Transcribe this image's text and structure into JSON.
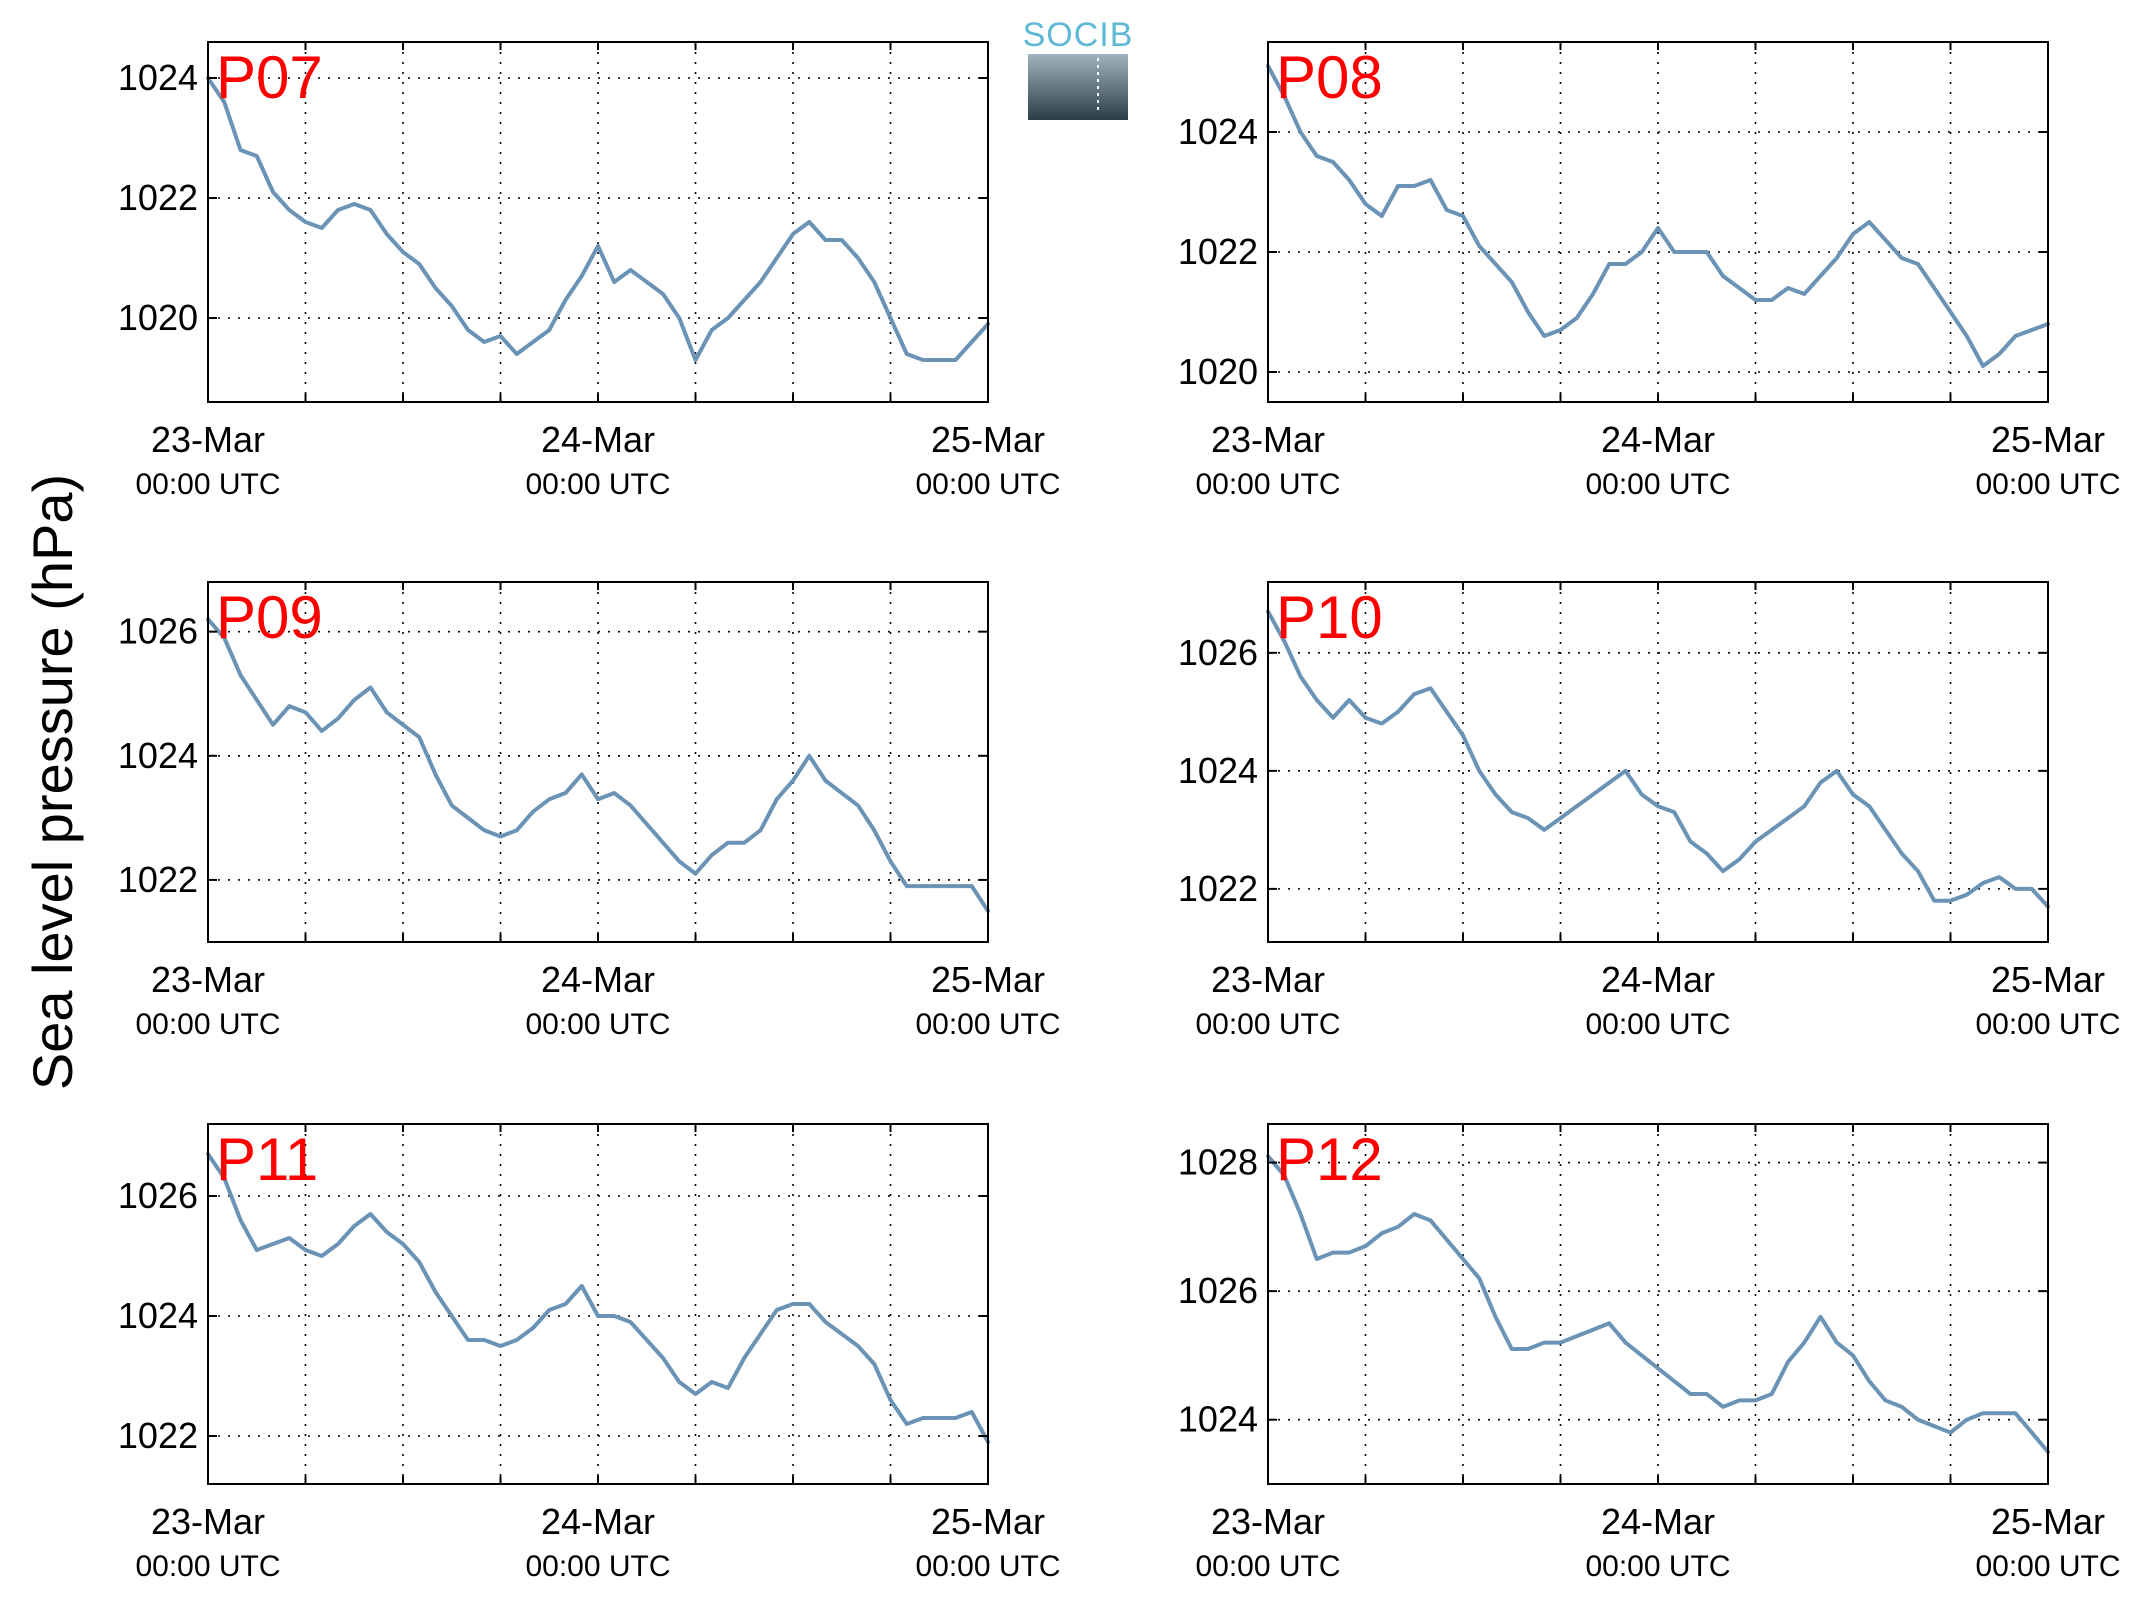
{
  "figure": {
    "ylabel": "Sea level pressure (hPa)",
    "logo_text": "SOCIB"
  },
  "style": {
    "line_color": "#6a93b6",
    "label_color": "#ff0000",
    "grid_color": "#000000",
    "logo_top_color": "#9fb3bf",
    "logo_bottom_color": "#2b3e48",
    "logo_text_color": "#5fb9d6"
  },
  "chart_data": [
    {
      "type": "line",
      "label": "P07",
      "x_range": [
        0,
        48
      ],
      "x_unit": "hours since 23-Mar 00:00 UTC",
      "ylim": [
        1018.6,
        1024.6
      ],
      "yticks": [
        1020,
        1022,
        1024
      ],
      "xtick_labels": [
        {
          "date": "23-Mar",
          "time": "00:00 UTC"
        },
        {
          "date": "24-Mar",
          "time": "00:00 UTC"
        },
        {
          "date": "25-Mar",
          "time": "00:00 UTC"
        }
      ],
      "grid": true,
      "series": [
        {
          "x": [
            0,
            1,
            2,
            3,
            4,
            5,
            6,
            7,
            8,
            9,
            10,
            11,
            12,
            13,
            14,
            15,
            16,
            17,
            18,
            19,
            20,
            21,
            22,
            23,
            24,
            25,
            26,
            27,
            28,
            29,
            30,
            31,
            32,
            33,
            34,
            35,
            36,
            37,
            38,
            39,
            40,
            41,
            42,
            43,
            44,
            45,
            46,
            47,
            48
          ],
          "y": [
            1024.0,
            1023.6,
            1022.8,
            1022.7,
            1022.1,
            1021.8,
            1021.6,
            1021.5,
            1021.8,
            1021.9,
            1021.8,
            1021.4,
            1021.1,
            1020.9,
            1020.5,
            1020.2,
            1019.8,
            1019.6,
            1019.7,
            1019.4,
            1019.6,
            1019.8,
            1020.3,
            1020.7,
            1021.2,
            1020.6,
            1020.8,
            1020.6,
            1020.4,
            1020.0,
            1019.3,
            1019.8,
            1020.0,
            1020.3,
            1020.6,
            1021.0,
            1021.4,
            1021.6,
            1021.3,
            1021.3,
            1021.0,
            1020.6,
            1020.0,
            1019.4,
            1019.3,
            1019.3,
            1019.3,
            1019.6,
            1019.9
          ]
        }
      ]
    },
    {
      "type": "line",
      "label": "P08",
      "x_range": [
        0,
        48
      ],
      "x_unit": "hours since 23-Mar 00:00 UTC",
      "ylim": [
        1019.5,
        1025.5
      ],
      "yticks": [
        1020,
        1022,
        1024
      ],
      "xtick_labels": [
        {
          "date": "23-Mar",
          "time": "00:00 UTC"
        },
        {
          "date": "24-Mar",
          "time": "00:00 UTC"
        },
        {
          "date": "25-Mar",
          "time": "00:00 UTC"
        }
      ],
      "grid": true,
      "series": [
        {
          "x": [
            0,
            1,
            2,
            3,
            4,
            5,
            6,
            7,
            8,
            9,
            10,
            11,
            12,
            13,
            14,
            15,
            16,
            17,
            18,
            19,
            20,
            21,
            22,
            23,
            24,
            25,
            26,
            27,
            28,
            29,
            30,
            31,
            32,
            33,
            34,
            35,
            36,
            37,
            38,
            39,
            40,
            41,
            42,
            43,
            44,
            45,
            46,
            47,
            48
          ],
          "y": [
            1025.1,
            1024.6,
            1024.0,
            1023.6,
            1023.5,
            1023.2,
            1022.8,
            1022.6,
            1023.1,
            1023.1,
            1023.2,
            1022.7,
            1022.6,
            1022.1,
            1021.8,
            1021.5,
            1021.0,
            1020.6,
            1020.7,
            1020.9,
            1021.3,
            1021.8,
            1021.8,
            1022.0,
            1022.4,
            1022.0,
            1022.0,
            1022.0,
            1021.6,
            1021.4,
            1021.2,
            1021.2,
            1021.4,
            1021.3,
            1021.6,
            1021.9,
            1022.3,
            1022.5,
            1022.2,
            1021.9,
            1021.8,
            1021.4,
            1021.0,
            1020.6,
            1020.1,
            1020.3,
            1020.6,
            1020.7,
            1020.8
          ]
        }
      ]
    },
    {
      "type": "line",
      "label": "P09",
      "x_range": [
        0,
        48
      ],
      "x_unit": "hours since 23-Mar 00:00 UTC",
      "ylim": [
        1021.0,
        1026.8
      ],
      "yticks": [
        1022,
        1024,
        1026
      ],
      "xtick_labels": [
        {
          "date": "23-Mar",
          "time": "00:00 UTC"
        },
        {
          "date": "24-Mar",
          "time": "00:00 UTC"
        },
        {
          "date": "25-Mar",
          "time": "00:00 UTC"
        }
      ],
      "grid": true,
      "series": [
        {
          "x": [
            0,
            1,
            2,
            3,
            4,
            5,
            6,
            7,
            8,
            9,
            10,
            11,
            12,
            13,
            14,
            15,
            16,
            17,
            18,
            19,
            20,
            21,
            22,
            23,
            24,
            25,
            26,
            27,
            28,
            29,
            30,
            31,
            32,
            33,
            34,
            35,
            36,
            37,
            38,
            39,
            40,
            41,
            42,
            43,
            44,
            45,
            46,
            47,
            48
          ],
          "y": [
            1026.2,
            1025.9,
            1025.3,
            1024.9,
            1024.5,
            1024.8,
            1024.7,
            1024.4,
            1024.6,
            1024.9,
            1025.1,
            1024.7,
            1024.5,
            1024.3,
            1023.7,
            1023.2,
            1023.0,
            1022.8,
            1022.7,
            1022.8,
            1023.1,
            1023.3,
            1023.4,
            1023.7,
            1023.3,
            1023.4,
            1023.2,
            1022.9,
            1022.6,
            1022.3,
            1022.1,
            1022.4,
            1022.6,
            1022.6,
            1022.8,
            1023.3,
            1023.6,
            1024.0,
            1023.6,
            1023.4,
            1023.2,
            1022.8,
            1022.3,
            1021.9,
            1021.9,
            1021.9,
            1021.9,
            1021.9,
            1021.5
          ]
        }
      ]
    },
    {
      "type": "line",
      "label": "P10",
      "x_range": [
        0,
        48
      ],
      "x_unit": "hours since 23-Mar 00:00 UTC",
      "ylim": [
        1021.1,
        1027.2
      ],
      "yticks": [
        1022,
        1024,
        1026
      ],
      "xtick_labels": [
        {
          "date": "23-Mar",
          "time": "00:00 UTC"
        },
        {
          "date": "24-Mar",
          "time": "00:00 UTC"
        },
        {
          "date": "25-Mar",
          "time": "00:00 UTC"
        }
      ],
      "grid": true,
      "series": [
        {
          "x": [
            0,
            1,
            2,
            3,
            4,
            5,
            6,
            7,
            8,
            9,
            10,
            11,
            12,
            13,
            14,
            15,
            16,
            17,
            18,
            19,
            20,
            21,
            22,
            23,
            24,
            25,
            26,
            27,
            28,
            29,
            30,
            31,
            32,
            33,
            34,
            35,
            36,
            37,
            38,
            39,
            40,
            41,
            42,
            43,
            44,
            45,
            46,
            47,
            48
          ],
          "y": [
            1026.7,
            1026.2,
            1025.6,
            1025.2,
            1024.9,
            1025.2,
            1024.9,
            1024.8,
            1025.0,
            1025.3,
            1025.4,
            1025.0,
            1024.6,
            1024.0,
            1023.6,
            1023.3,
            1023.2,
            1023.0,
            1023.2,
            1023.4,
            1023.6,
            1023.8,
            1024.0,
            1023.6,
            1023.4,
            1023.3,
            1022.8,
            1022.6,
            1022.3,
            1022.5,
            1022.8,
            1023.0,
            1023.2,
            1023.4,
            1023.8,
            1024.0,
            1023.6,
            1023.4,
            1023.0,
            1022.6,
            1022.3,
            1021.8,
            1021.8,
            1021.9,
            1022.1,
            1022.2,
            1022.0,
            1022.0,
            1021.7
          ]
        }
      ]
    },
    {
      "type": "line",
      "label": "P11",
      "x_range": [
        0,
        48
      ],
      "x_unit": "hours since 23-Mar 00:00 UTC",
      "ylim": [
        1021.2,
        1027.2
      ],
      "yticks": [
        1022,
        1024,
        1026
      ],
      "xtick_labels": [
        {
          "date": "23-Mar",
          "time": "00:00 UTC"
        },
        {
          "date": "24-Mar",
          "time": "00:00 UTC"
        },
        {
          "date": "25-Mar",
          "time": "00:00 UTC"
        }
      ],
      "grid": true,
      "series": [
        {
          "x": [
            0,
            1,
            2,
            3,
            4,
            5,
            6,
            7,
            8,
            9,
            10,
            11,
            12,
            13,
            14,
            15,
            16,
            17,
            18,
            19,
            20,
            21,
            22,
            23,
            24,
            25,
            26,
            27,
            28,
            29,
            30,
            31,
            32,
            33,
            34,
            35,
            36,
            37,
            38,
            39,
            40,
            41,
            42,
            43,
            44,
            45,
            46,
            47,
            48
          ],
          "y": [
            1026.7,
            1026.3,
            1025.6,
            1025.1,
            1025.2,
            1025.3,
            1025.1,
            1025.0,
            1025.2,
            1025.5,
            1025.7,
            1025.4,
            1025.2,
            1024.9,
            1024.4,
            1024.0,
            1023.6,
            1023.6,
            1023.5,
            1023.6,
            1023.8,
            1024.1,
            1024.2,
            1024.5,
            1024.0,
            1024.0,
            1023.9,
            1023.6,
            1023.3,
            1022.9,
            1022.7,
            1022.9,
            1022.8,
            1023.3,
            1023.7,
            1024.1,
            1024.2,
            1024.2,
            1023.9,
            1023.7,
            1023.5,
            1023.2,
            1022.6,
            1022.2,
            1022.3,
            1022.3,
            1022.3,
            1022.4,
            1021.9
          ]
        }
      ]
    },
    {
      "type": "line",
      "label": "P12",
      "x_range": [
        0,
        48
      ],
      "x_unit": "hours since 23-Mar 00:00 UTC",
      "ylim": [
        1023.0,
        1028.6
      ],
      "yticks": [
        1024,
        1026,
        1028
      ],
      "xtick_labels": [
        {
          "date": "23-Mar",
          "time": "00:00 UTC"
        },
        {
          "date": "24-Mar",
          "time": "00:00 UTC"
        },
        {
          "date": "25-Mar",
          "time": "00:00 UTC"
        }
      ],
      "grid": true,
      "series": [
        {
          "x": [
            0,
            1,
            2,
            3,
            4,
            5,
            6,
            7,
            8,
            9,
            10,
            11,
            12,
            13,
            14,
            15,
            16,
            17,
            18,
            19,
            20,
            21,
            22,
            23,
            24,
            25,
            26,
            27,
            28,
            29,
            30,
            31,
            32,
            33,
            34,
            35,
            36,
            37,
            38,
            39,
            40,
            41,
            42,
            43,
            44,
            45,
            46,
            47,
            48
          ],
          "y": [
            1028.1,
            1027.8,
            1027.2,
            1026.5,
            1026.6,
            1026.6,
            1026.7,
            1026.9,
            1027.0,
            1027.2,
            1027.1,
            1026.8,
            1026.5,
            1026.2,
            1025.6,
            1025.1,
            1025.1,
            1025.2,
            1025.2,
            1025.3,
            1025.4,
            1025.5,
            1025.2,
            1025.0,
            1024.8,
            1024.6,
            1024.4,
            1024.4,
            1024.2,
            1024.3,
            1024.3,
            1024.4,
            1024.9,
            1025.2,
            1025.6,
            1025.2,
            1025.0,
            1024.6,
            1024.3,
            1024.2,
            1024.0,
            1023.9,
            1023.8,
            1024.0,
            1024.1,
            1024.1,
            1024.1,
            1023.8,
            1023.5
          ]
        }
      ]
    }
  ]
}
